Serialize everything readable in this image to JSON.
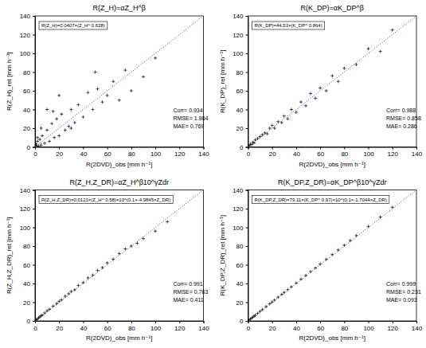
{
  "chart_data": [
    {
      "type": "scatter",
      "title": "R(Z_H)=αZ_H^β",
      "x_label": "R(2DVD)_obs [mm h⁻¹]",
      "y_label": "R(Z_H)_ret [mm h⁻¹]",
      "annotations": [
        "R(Z_H)=0.0407×(Z_H^ 0.628)",
        "Corr= 0.934",
        "RMSE= 1.984",
        "MAE= 0.769"
      ],
      "xlim": [
        0,
        140
      ],
      "ylim": [
        0,
        140
      ],
      "xticks": [
        0,
        20,
        40,
        60,
        80,
        100,
        120,
        140
      ],
      "yticks": [
        0,
        20,
        40,
        60,
        80,
        100,
        120,
        140
      ],
      "color": "#000000",
      "marker": "plus",
      "x": [
        0.5,
        1,
        1.5,
        2,
        3,
        4,
        5,
        6,
        8,
        10,
        12,
        14,
        16,
        18,
        20,
        22,
        25,
        28,
        30,
        33,
        36,
        40,
        44,
        48,
        52,
        56,
        60,
        65,
        70,
        75,
        80,
        90,
        100,
        2,
        5,
        10,
        15,
        20,
        30,
        50
      ],
      "values": [
        2,
        3,
        0.5,
        6,
        1,
        8,
        2,
        12,
        4,
        18,
        6,
        25,
        10,
        30,
        12,
        35,
        18,
        22,
        40,
        26,
        45,
        32,
        58,
        40,
        62,
        48,
        55,
        70,
        50,
        82,
        60,
        75,
        95,
        10,
        20,
        40,
        38,
        55,
        20,
        80
      ]
    },
    {
      "type": "scatter",
      "title": "R(K_DP)=αK_DP^β",
      "x_label": "R(2DVD)_obs [mm h⁻¹]",
      "y_label": "R(K_DP)_ret [mm h⁻¹]",
      "annotations": [
        "R(K_DP)=44.53×(K_DP^ 0.864)",
        "Corr= 0.988",
        "RMSE= 0.858",
        "MAE= 0.286"
      ],
      "xlim": [
        0,
        140
      ],
      "ylim": [
        0,
        140
      ],
      "xticks": [
        0,
        20,
        40,
        60,
        80,
        100,
        120,
        140
      ],
      "yticks": [
        0,
        20,
        40,
        60,
        80,
        100,
        120,
        140
      ],
      "color": "#000000",
      "marker": "plus",
      "x": [
        1,
        2,
        3,
        4,
        5,
        6,
        8,
        10,
        12,
        14,
        16,
        18,
        20,
        22,
        25,
        28,
        30,
        33,
        36,
        40,
        44,
        48,
        52,
        56,
        60,
        65,
        70,
        75,
        80,
        90,
        100,
        110,
        120
      ],
      "values": [
        1.5,
        2.8,
        2.5,
        5,
        4.2,
        7.5,
        9,
        11,
        13,
        15,
        14,
        20,
        23,
        20,
        27,
        26,
        33,
        30,
        40,
        37,
        48,
        44,
        57,
        52,
        63,
        60,
        76,
        70,
        84,
        88,
        105,
        102,
        125
      ]
    },
    {
      "type": "scatter",
      "title": "R(Z_H,Z_DR)=αZ_H^β10^γZdr",
      "x_label": "R(2DVD)_obs [mm h⁻¹]",
      "y_label": "R(Z_H,Z_DR)_ret [mm h⁻¹]",
      "annotations": [
        "R(Z_H,Z_DR)=0.0121×(Z_H^ 0.58)×10^(0.1×-4.9845×Z_DR)",
        "Corr= 0.991",
        "RMSE= 0.763",
        "MAE= 0.411"
      ],
      "xlim": [
        0,
        140
      ],
      "ylim": [
        0,
        140
      ],
      "xticks": [
        0,
        20,
        40,
        60,
        80,
        100,
        120,
        140
      ],
      "yticks": [
        0,
        20,
        40,
        60,
        80,
        100,
        120,
        140
      ],
      "color": "#000000",
      "marker": "plus",
      "x": [
        1,
        2,
        3,
        4,
        5,
        6,
        8,
        10,
        12,
        15,
        18,
        20,
        22,
        25,
        28,
        30,
        33,
        36,
        40,
        44,
        48,
        52,
        56,
        60,
        65,
        70,
        75,
        80,
        85,
        90,
        100,
        110
      ],
      "values": [
        1.2,
        2.1,
        3.4,
        4.3,
        5.5,
        6.2,
        8.5,
        10.8,
        12.4,
        15.8,
        18.6,
        21,
        22.5,
        26.4,
        29,
        31.5,
        33.2,
        38,
        41,
        46,
        49,
        54,
        57,
        62,
        66,
        72,
        77,
        80,
        83,
        88,
        96,
        106
      ]
    },
    {
      "type": "scatter",
      "title": "R(K_DP,Z_DR)=αK_DP^β10^γZdr",
      "x_label": "R(2DVD)_obs [mm h⁻¹]",
      "y_label": "R(K_DP,Z_DR)_ret [mm h⁻¹]",
      "annotations": [
        "R(K_DP,Z_DR)=79.11×(K_DP^ 0.97)×10^(0.1×-1.7044×Z_DR)",
        "Corr= 0.999",
        "RMSE= 0.231",
        "MAE= 0.093"
      ],
      "xlim": [
        0,
        140
      ],
      "ylim": [
        0,
        140
      ],
      "xticks": [
        0,
        20,
        40,
        60,
        80,
        100,
        120,
        140
      ],
      "yticks": [
        0,
        20,
        40,
        60,
        80,
        100,
        120,
        140
      ],
      "color": "#000000",
      "marker": "plus",
      "x": [
        1,
        2,
        3,
        4,
        5,
        6,
        8,
        10,
        12,
        15,
        18,
        20,
        22,
        25,
        28,
        30,
        33,
        36,
        40,
        44,
        48,
        52,
        56,
        60,
        65,
        70,
        75,
        80,
        85,
        90,
        100,
        110,
        120
      ],
      "values": [
        1.1,
        2,
        3.1,
        4,
        5.1,
        6,
        8.1,
        10.2,
        12.1,
        15.2,
        18.3,
        20.2,
        22.3,
        25.4,
        28.3,
        30.4,
        33.5,
        36.4,
        40.5,
        44.6,
        48.5,
        52.7,
        56.6,
        60.8,
        65.7,
        70.9,
        75.8,
        81,
        85.9,
        91.2,
        101,
        111,
        121.5
      ]
    }
  ]
}
